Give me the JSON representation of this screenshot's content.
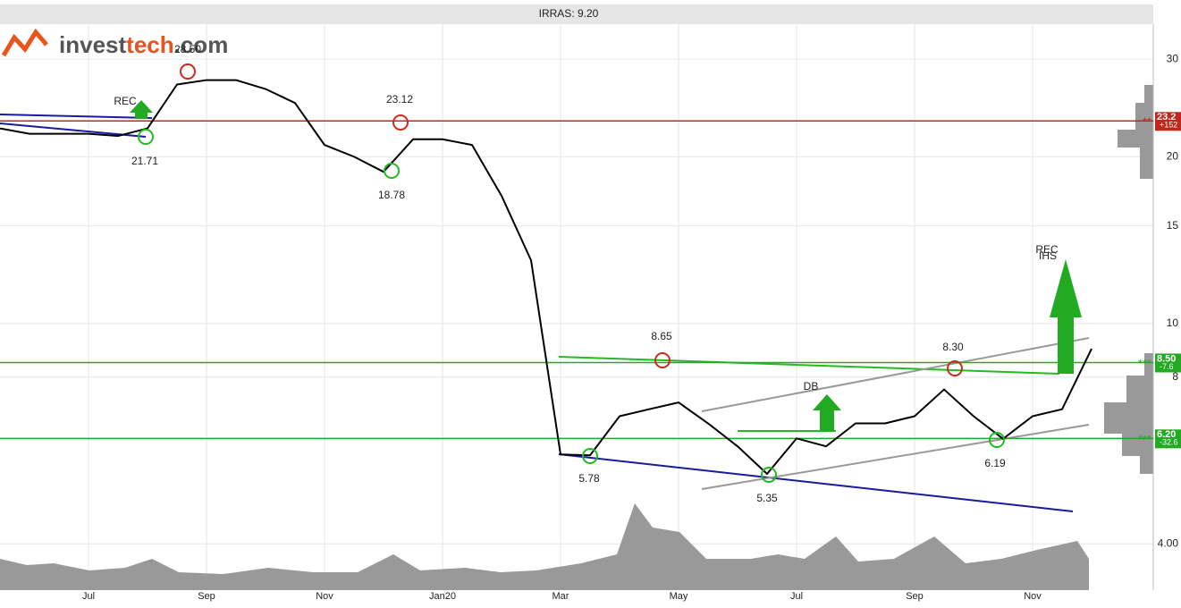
{
  "chart_data": {
    "type": "line",
    "title": "IRRAS: 9.20",
    "logo": [
      "invest",
      "tech",
      ".com"
    ],
    "categories": [
      null,
      null,
      null,
      "Jul",
      null,
      null,
      null,
      "Sep",
      null,
      null,
      null,
      "Nov",
      null,
      null,
      null,
      "Jan20",
      null,
      null,
      null,
      "Mar",
      null,
      null,
      null,
      "May",
      null,
      null,
      null,
      "Jul",
      null,
      null,
      null,
      "Sep",
      null,
      null,
      null,
      "Nov",
      null,
      null
    ],
    "values": [
      22.5,
      22,
      22,
      22,
      21.8,
      22.5,
      27,
      27.5,
      27.5,
      26.5,
      25,
      21,
      20,
      18.78,
      21.5,
      21.5,
      21,
      17,
      13,
      5.8,
      5.78,
      6.8,
      7,
      7.2,
      6.6,
      6,
      5.35,
      6.2,
      6,
      6.6,
      6.6,
      6.8,
      7.6,
      6.8,
      6.19,
      6.8,
      7,
      9
    ],
    "color": "#000000",
    "log_scale": true,
    "grid": true,
    "ylim": [
      3.3,
      34.7
    ],
    "yticks": [
      {
        "value": 4,
        "label": "4.00"
      },
      8,
      10,
      15,
      20,
      30
    ],
    "annotations": [
      "28.50",
      "23.12",
      "21.71",
      "18.78",
      "8.65",
      "8.30",
      "5.78",
      "5.35",
      "6.19"
    ],
    "signals": [
      "REC",
      "REC",
      "IHS",
      "DB"
    ],
    "levels": [
      {
        "value": 23.2,
        "label": "23.2",
        "change": "+152",
        "stars": "**",
        "color": "#c0281c"
      },
      {
        "value": 8.5,
        "label": "8.50",
        "change": "-7.6",
        "stars": "***",
        "color": "#22aa22"
      },
      {
        "value": 6.2,
        "label": "6.20",
        "change": "-32.6",
        "stars": "***",
        "color": "#22aa22"
      }
    ]
  }
}
